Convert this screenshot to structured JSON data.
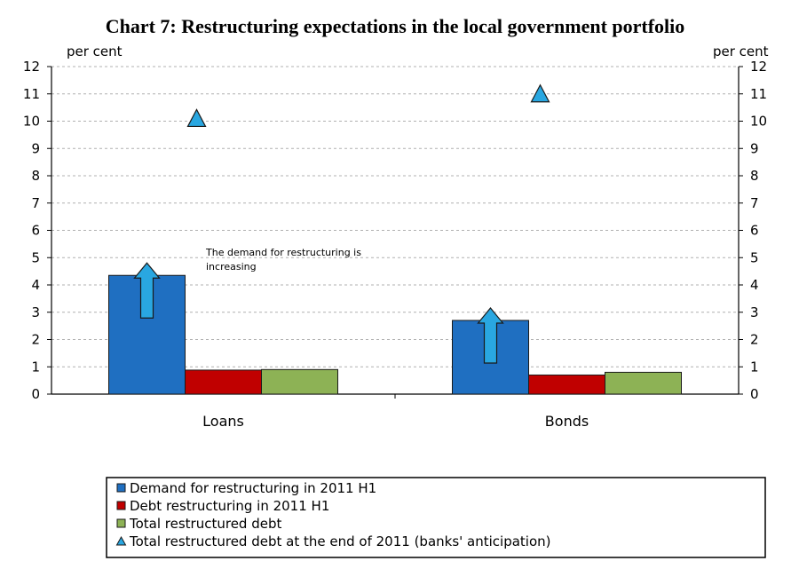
{
  "chart_data": {
    "type": "bar",
    "title": "Chart 7: Restructuring expectations in the local government portfolio",
    "y_unit_left": "per cent",
    "y_unit_right": "per cent",
    "ylim": [
      0,
      12
    ],
    "y_ticks": [
      "0",
      "1",
      "2",
      "3",
      "4",
      "5",
      "6",
      "7",
      "8",
      "9",
      "10",
      "11",
      "12"
    ],
    "grid": true,
    "categories": [
      "Loans",
      "Bonds"
    ],
    "series": [
      {
        "name": "Demand for restructuring in 2011 H1",
        "kind": "bar",
        "color": "#1F6FC1",
        "values": [
          4.35,
          2.7
        ]
      },
      {
        "name": "Debt restructuring in 2011 H1",
        "kind": "bar",
        "color": "#C00000",
        "values": [
          0.88,
          0.7
        ]
      },
      {
        "name": "Total restructured debt",
        "kind": "bar",
        "color": "#8DB255",
        "values": [
          0.9,
          0.8
        ]
      },
      {
        "name": "Total restructured debt at the end of 2011 (banks' anticipation)",
        "kind": "marker",
        "marker": "triangle",
        "color": "#29A7E1",
        "values": [
          10.1,
          11.0
        ]
      }
    ],
    "arrow_color": "#29A7E1",
    "annotation": [
      "The demand for restructuring is",
      "increasing"
    ],
    "legend_position": "bottom"
  }
}
